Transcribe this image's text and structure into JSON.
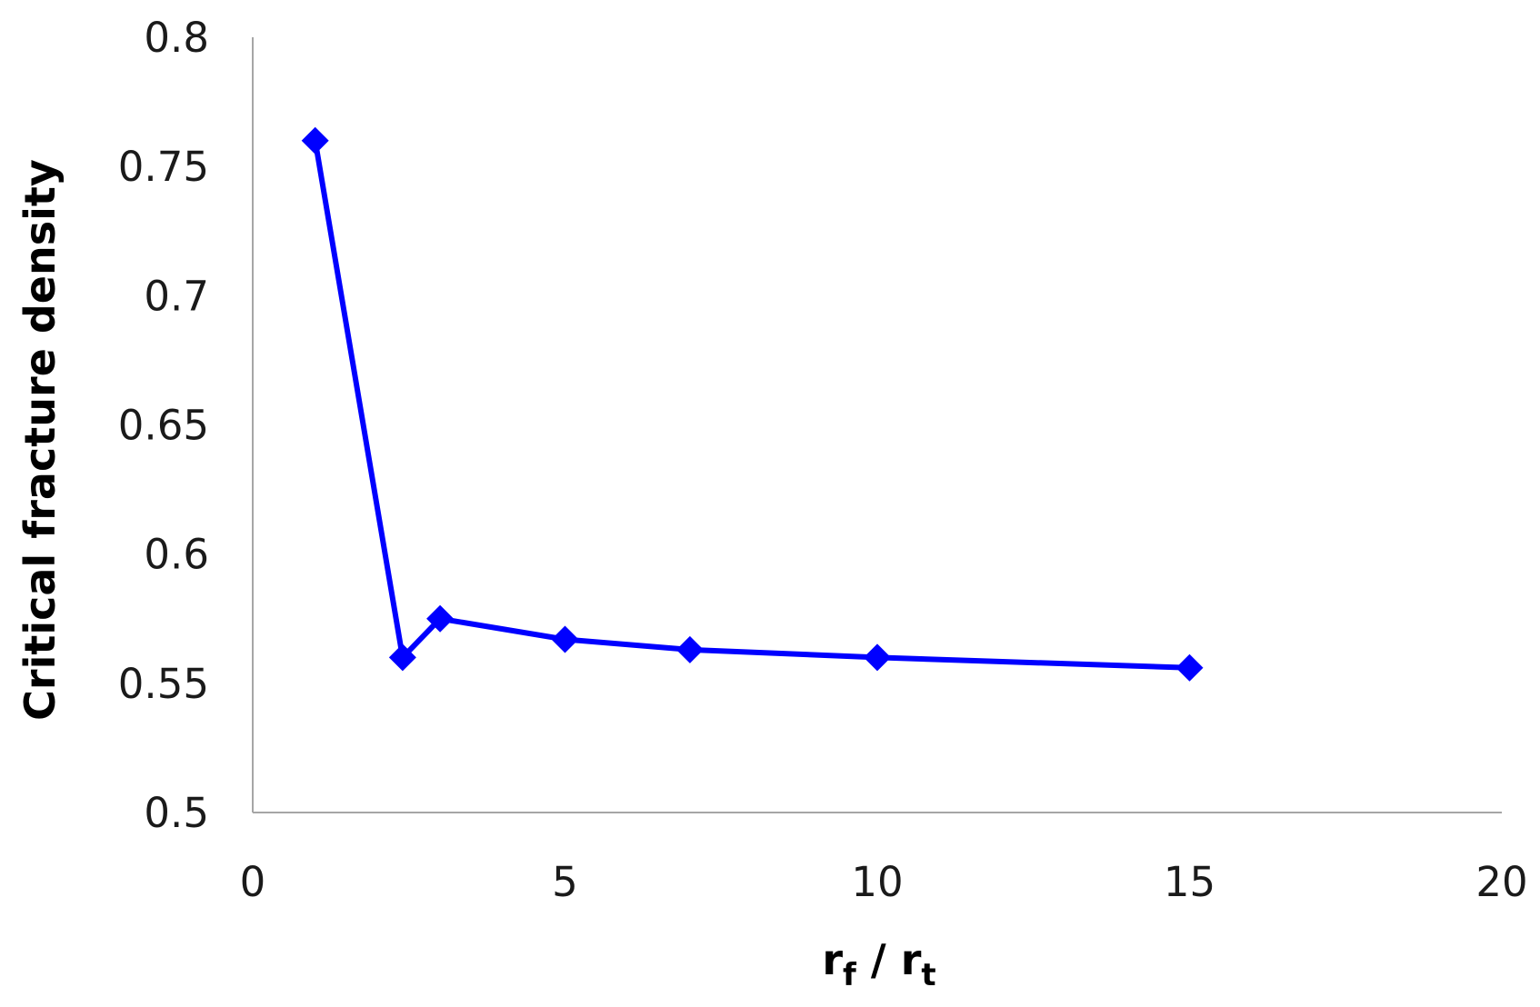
{
  "chart_data": {
    "type": "line",
    "title": "",
    "xlabel": {
      "base1": "r",
      "sub1": "f",
      "sep": " / ",
      "base2": "r",
      "sub2": "t"
    },
    "ylabel": "Critical fracture density",
    "xlim": [
      0,
      20
    ],
    "ylim": [
      0.5,
      0.8
    ],
    "x_ticks": [
      0,
      5,
      10,
      15,
      20
    ],
    "x_tick_labels": [
      "0",
      "5",
      "10",
      "15",
      "20"
    ],
    "y_ticks": [
      0.5,
      0.55,
      0.6,
      0.65,
      0.7,
      0.75,
      0.8
    ],
    "y_tick_labels": [
      "0.5",
      "0.55",
      "0.6",
      "0.65",
      "0.7",
      "0.75",
      "0.8"
    ],
    "grid": false,
    "legend": "none",
    "series": [
      {
        "color": "#0000ff",
        "marker": "diamond",
        "x": [
          1,
          2.4,
          3,
          5,
          7,
          10,
          15
        ],
        "y": [
          0.76,
          0.56,
          0.575,
          0.567,
          0.563,
          0.56,
          0.556
        ]
      }
    ]
  }
}
